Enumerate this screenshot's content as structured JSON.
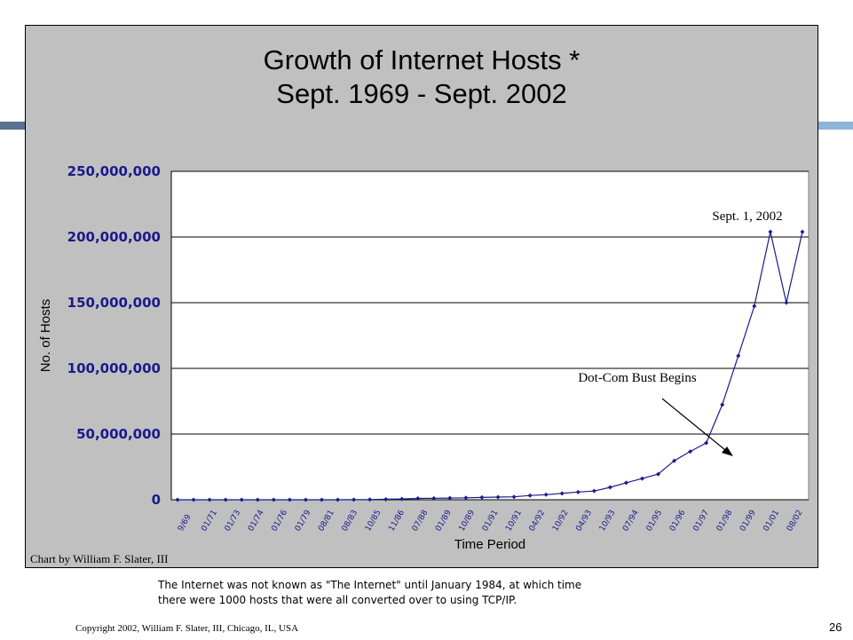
{
  "slide": {
    "copyright": "Copyright 2002, William F. Slater, III, Chicago, IL, USA",
    "page_number": "26",
    "note_line1": "The Internet was not known as \"The Internet\" until January 1984, at which time",
    "note_line2": "there were 1000 hosts that were all converted over to using TCP/IP.",
    "credit": "Chart by William  F. Slater, III",
    "colors": {
      "plot_bg": "#ffffff",
      "area_bg": "#c0c0c0",
      "series": "#1a1a8c",
      "band_left": "#5a7290",
      "band_right": "#8fb3d9"
    }
  },
  "chart_data": {
    "type": "line",
    "title_line1": "Growth of Internet Hosts *",
    "title_line2": "Sept. 1969 - Sept. 2002",
    "xlabel": "Time Period",
    "ylabel": "No. of Hosts",
    "ylim": [
      0,
      250000000
    ],
    "yticks": [
      "0",
      "50,000,000",
      "100,000,000",
      "150,000,000",
      "200,000,000",
      "250,000,000"
    ],
    "grid": true,
    "x_tick_labels": [
      "9/69",
      "01/71",
      "01/73",
      "01/74",
      "01/76",
      "01/79",
      "08/81",
      "08/83",
      "10/85",
      "11/86",
      "07/88",
      "01/89",
      "10/89",
      "01/91",
      "10/91",
      "04/92",
      "10/92",
      "04/93",
      "10/93",
      "07/94",
      "01/95",
      "01/96",
      "01/97",
      "01/98",
      "01/99",
      "01/01",
      "08/02"
    ],
    "series": [
      {
        "values": [
          4,
          23,
          35,
          62,
          111,
          188,
          213,
          562,
          1961,
          5089,
          33000,
          80000,
          159000,
          376000,
          617000,
          992000,
          1136000,
          1313000,
          1486000,
          1776000,
          2056000,
          2217000,
          3212000,
          3864000,
          4852000,
          5846000,
          6642000,
          9472000,
          12881000,
          16146000,
          19540000,
          29670000,
          36739000,
          43230000,
          72398000,
          109574000,
          147344723,
          204000000,
          162128493,
          204000000
        ]
      }
    ],
    "annotations": [
      "Sept. 1, 2002",
      "Dot-Com Bust Begins"
    ]
  }
}
